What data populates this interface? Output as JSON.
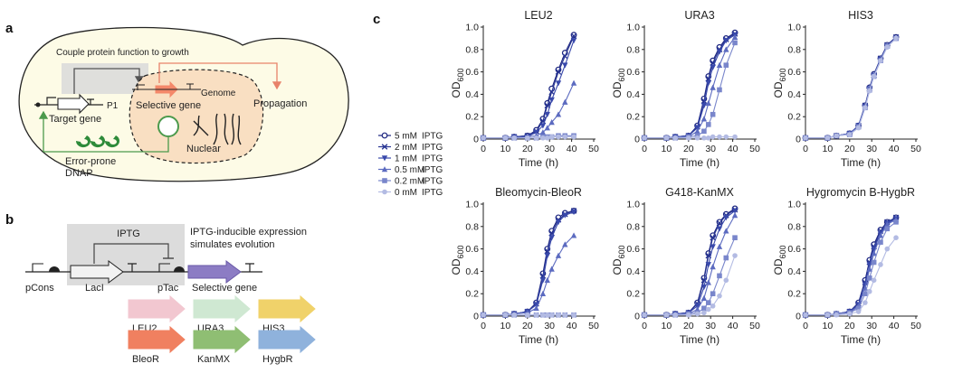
{
  "panel_a": {
    "label": "a",
    "couple_text": "Couple protein function to growth",
    "p1": "P1",
    "target_gene": "Target gene",
    "selective_gene": "Selective gene",
    "genome": "Genome",
    "propagation": "Propagation",
    "nuclear": "Nuclear",
    "dnap_line1": "Error-prone",
    "dnap_line2": "DNAP"
  },
  "panel_b": {
    "label": "b",
    "iptg": "IPTG",
    "desc_line1": "IPTG-inducible expression",
    "desc_line2": "simulates evolution",
    "pcons": "pCons",
    "laci": "LacI",
    "ptac": "pTac",
    "selective_gene": "Selective gene",
    "markers": [
      {
        "name": "LEU2",
        "fill": "#f2c7d0",
        "text": "#e3a0b0"
      },
      {
        "name": "URA3",
        "fill": "#cfe8d2",
        "text": "#a8d4ae"
      },
      {
        "name": "HIS3",
        "fill": "#f0d26a",
        "text": "#e0bc40"
      },
      {
        "name": "BleoR",
        "fill": "#f08060",
        "text": "#e07050"
      },
      {
        "name": "KanMX",
        "fill": "#8fbe73",
        "text": "#78ac58"
      },
      {
        "name": "HygbR",
        "fill": "#8fb2dc",
        "text": "#6e98cc"
      }
    ]
  },
  "panel_c": {
    "label": "c",
    "legend": [
      {
        "conc": "5 mM",
        "unit": "IPTG",
        "color": "#1a237e",
        "marker": "open-circle"
      },
      {
        "conc": "2 mM",
        "unit": "IPTG",
        "color": "#283593",
        "marker": "x"
      },
      {
        "conc": "1 mM",
        "unit": "IPTG",
        "color": "#3949ab",
        "marker": "down-triangle"
      },
      {
        "conc": "0.5 mM",
        "unit": "IPTG",
        "color": "#5c6bc0",
        "marker": "up-triangle"
      },
      {
        "conc": "0.2 mM",
        "unit": "IPTG",
        "color": "#7986cb",
        "marker": "square"
      },
      {
        "conc": "0 mM",
        "unit": "IPTG",
        "color": "#b3bbe3",
        "marker": "circle"
      }
    ]
  },
  "chart_data": [
    {
      "type": "line",
      "title": "LEU2",
      "xlabel": "Time (h)",
      "ylabel": "OD600",
      "xlim": [
        0,
        50
      ],
      "ylim": [
        0,
        1.0
      ],
      "xticks": [
        "0",
        "10",
        "20",
        "30",
        "40",
        "50"
      ],
      "yticks": [
        "0",
        "0.2",
        "0.4",
        "0.6",
        "0.8",
        "1.0"
      ],
      "x": [
        0,
        10,
        14,
        20,
        24,
        27,
        29,
        31,
        34,
        37,
        41
      ],
      "series": [
        {
          "name": "5 mM IPTG",
          "values": [
            0.01,
            0.01,
            0.02,
            0.03,
            0.08,
            0.18,
            0.32,
            0.45,
            0.62,
            0.77,
            0.93
          ]
        },
        {
          "name": "2 mM IPTG",
          "values": [
            0.01,
            0.01,
            0.02,
            0.03,
            0.07,
            0.16,
            0.3,
            0.42,
            0.6,
            0.74,
            0.92
          ]
        },
        {
          "name": "1 mM IPTG",
          "values": [
            0.01,
            0.01,
            0.02,
            0.02,
            0.06,
            0.12,
            0.22,
            0.35,
            0.5,
            0.66,
            0.88
          ]
        },
        {
          "name": "0.5 mM IPTG",
          "values": [
            0.01,
            0.01,
            0.01,
            0.02,
            0.03,
            0.06,
            0.1,
            0.15,
            0.22,
            0.33,
            0.5
          ]
        },
        {
          "name": "0.2 mM IPTG",
          "values": [
            0.01,
            0.01,
            0.01,
            0.01,
            0.01,
            0.02,
            0.02,
            0.02,
            0.03,
            0.03,
            0.03
          ]
        },
        {
          "name": "0 mM IPTG",
          "values": [
            0.01,
            0.01,
            0.01,
            0.01,
            0.01,
            0.01,
            0.01,
            0.02,
            0.02,
            0.02,
            0.02
          ]
        }
      ]
    },
    {
      "type": "line",
      "title": "URA3",
      "xlabel": "Time (h)",
      "ylabel": "OD600",
      "xlim": [
        0,
        50
      ],
      "ylim": [
        0,
        1.0
      ],
      "xticks": [
        "0",
        "10",
        "20",
        "30",
        "40",
        "50"
      ],
      "yticks": [
        "0",
        "0.2",
        "0.4",
        "0.6",
        "0.8",
        "1.0"
      ],
      "x": [
        0,
        10,
        14,
        20,
        24,
        27,
        29,
        31,
        34,
        37,
        41
      ],
      "series": [
        {
          "name": "5 mM IPTG",
          "values": [
            0.01,
            0.01,
            0.02,
            0.03,
            0.12,
            0.36,
            0.56,
            0.7,
            0.82,
            0.9,
            0.95
          ]
        },
        {
          "name": "2 mM IPTG",
          "values": [
            0.01,
            0.01,
            0.02,
            0.03,
            0.11,
            0.34,
            0.54,
            0.68,
            0.8,
            0.89,
            0.94
          ]
        },
        {
          "name": "1 mM IPTG",
          "values": [
            0.01,
            0.01,
            0.02,
            0.03,
            0.1,
            0.3,
            0.5,
            0.64,
            0.78,
            0.88,
            0.93
          ]
        },
        {
          "name": "0.5 mM IPTG",
          "values": [
            0.01,
            0.01,
            0.02,
            0.02,
            0.07,
            0.18,
            0.32,
            0.46,
            0.66,
            0.8,
            0.91
          ]
        },
        {
          "name": "0.2 mM IPTG",
          "values": [
            0.01,
            0.01,
            0.01,
            0.02,
            0.03,
            0.07,
            0.13,
            0.22,
            0.44,
            0.66,
            0.86
          ]
        },
        {
          "name": "0 mM IPTG",
          "values": [
            0.01,
            0.01,
            0.01,
            0.01,
            0.01,
            0.01,
            0.01,
            0.02,
            0.02,
            0.02,
            0.02
          ]
        }
      ]
    },
    {
      "type": "line",
      "title": "HIS3",
      "xlabel": "Time (h)",
      "ylabel": "OD600",
      "xlim": [
        0,
        50
      ],
      "ylim": [
        0,
        1.0
      ],
      "xticks": [
        "0",
        "10",
        "20",
        "30",
        "40",
        "50"
      ],
      "yticks": [
        "0",
        "0.2",
        "0.4",
        "0.6",
        "0.8",
        "1.0"
      ],
      "x": [
        0,
        10,
        14,
        20,
        24,
        27,
        29,
        31,
        34,
        37,
        41
      ],
      "series": [
        {
          "name": "5 mM IPTG",
          "values": [
            0.01,
            0.01,
            0.03,
            0.05,
            0.12,
            0.3,
            0.46,
            0.58,
            0.72,
            0.84,
            0.91
          ]
        },
        {
          "name": "2 mM IPTG",
          "values": [
            0.01,
            0.01,
            0.03,
            0.05,
            0.12,
            0.3,
            0.45,
            0.57,
            0.72,
            0.84,
            0.91
          ]
        },
        {
          "name": "1 mM IPTG",
          "values": [
            0.01,
            0.01,
            0.03,
            0.05,
            0.12,
            0.29,
            0.45,
            0.57,
            0.71,
            0.83,
            0.9
          ]
        },
        {
          "name": "0.5 mM IPTG",
          "values": [
            0.01,
            0.01,
            0.03,
            0.05,
            0.11,
            0.29,
            0.44,
            0.57,
            0.71,
            0.83,
            0.9
          ]
        },
        {
          "name": "0.2 mM IPTG",
          "values": [
            0.01,
            0.01,
            0.03,
            0.04,
            0.11,
            0.28,
            0.44,
            0.56,
            0.7,
            0.83,
            0.9
          ]
        },
        {
          "name": "0 mM IPTG",
          "values": [
            0.01,
            0.01,
            0.03,
            0.04,
            0.1,
            0.28,
            0.43,
            0.56,
            0.7,
            0.82,
            0.9
          ]
        }
      ]
    },
    {
      "type": "line",
      "title": "Bleomycin-BleoR",
      "xlabel": "Time (h)",
      "ylabel": "OD600",
      "xlim": [
        0,
        50
      ],
      "ylim": [
        0,
        1.0
      ],
      "xticks": [
        "0",
        "10",
        "20",
        "30",
        "40",
        "50"
      ],
      "yticks": [
        "0",
        "0.2",
        "0.4",
        "0.6",
        "0.8",
        "1.0"
      ],
      "x": [
        0,
        10,
        14,
        20,
        24,
        27,
        29,
        31,
        34,
        37,
        41
      ],
      "series": [
        {
          "name": "5 mM IPTG",
          "values": [
            0.01,
            0.01,
            0.02,
            0.04,
            0.12,
            0.38,
            0.6,
            0.76,
            0.88,
            0.92,
            0.94
          ]
        },
        {
          "name": "2 mM IPTG",
          "values": [
            0.01,
            0.01,
            0.02,
            0.04,
            0.11,
            0.36,
            0.58,
            0.74,
            0.86,
            0.91,
            0.94
          ]
        },
        {
          "name": "1 mM IPTG",
          "values": [
            0.01,
            0.01,
            0.02,
            0.04,
            0.1,
            0.32,
            0.54,
            0.7,
            0.84,
            0.9,
            0.93
          ]
        },
        {
          "name": "0.5 mM IPTG",
          "values": [
            0.01,
            0.01,
            0.02,
            0.03,
            0.07,
            0.2,
            0.32,
            0.42,
            0.54,
            0.64,
            0.72
          ]
        },
        {
          "name": "0.2 mM IPTG",
          "values": [
            0.01,
            0.01,
            0.01,
            0.01,
            0.01,
            0.01,
            0.01,
            0.01,
            0.01,
            0.01,
            0.01
          ]
        },
        {
          "name": "0 mM IPTG",
          "values": [
            0.01,
            0.01,
            0.01,
            0.01,
            0.01,
            0.01,
            0.01,
            0.01,
            0.01,
            0.01,
            0.01
          ]
        }
      ]
    },
    {
      "type": "line",
      "title": "G418-KanMX",
      "xlabel": "Time (h)",
      "ylabel": "OD600",
      "xlim": [
        0,
        50
      ],
      "ylim": [
        0,
        1.0
      ],
      "xticks": [
        "0",
        "10",
        "20",
        "30",
        "40",
        "50"
      ],
      "yticks": [
        "0",
        "0.2",
        "0.4",
        "0.6",
        "0.8",
        "1.0"
      ],
      "x": [
        0,
        10,
        14,
        20,
        24,
        27,
        29,
        31,
        34,
        37,
        41
      ],
      "series": [
        {
          "name": "5 mM IPTG",
          "values": [
            0.01,
            0.01,
            0.02,
            0.03,
            0.12,
            0.34,
            0.56,
            0.72,
            0.84,
            0.91,
            0.96
          ]
        },
        {
          "name": "2 mM IPTG",
          "values": [
            0.01,
            0.01,
            0.02,
            0.03,
            0.11,
            0.32,
            0.54,
            0.7,
            0.83,
            0.9,
            0.95
          ]
        },
        {
          "name": "1 mM IPTG",
          "values": [
            0.01,
            0.01,
            0.02,
            0.03,
            0.09,
            0.26,
            0.46,
            0.62,
            0.78,
            0.88,
            0.94
          ]
        },
        {
          "name": "0.5 mM IPTG",
          "values": [
            0.01,
            0.01,
            0.02,
            0.02,
            0.06,
            0.16,
            0.3,
            0.44,
            0.62,
            0.76,
            0.9
          ]
        },
        {
          "name": "0.2 mM IPTG",
          "values": [
            0.01,
            0.01,
            0.01,
            0.02,
            0.03,
            0.07,
            0.12,
            0.2,
            0.36,
            0.52,
            0.7
          ]
        },
        {
          "name": "0 mM IPTG",
          "values": [
            0.01,
            0.01,
            0.01,
            0.01,
            0.02,
            0.03,
            0.06,
            0.09,
            0.18,
            0.32,
            0.54
          ]
        }
      ]
    },
    {
      "type": "line",
      "title": "Hygromycin B-HygbR",
      "xlabel": "Time (h)",
      "ylabel": "OD600",
      "xlim": [
        0,
        50
      ],
      "ylim": [
        0,
        1.0
      ],
      "xticks": [
        "0",
        "10",
        "20",
        "30",
        "40",
        "50"
      ],
      "yticks": [
        "0",
        "0.2",
        "0.4",
        "0.6",
        "0.8",
        "1.0"
      ],
      "x": [
        0,
        10,
        14,
        20,
        24,
        27,
        29,
        31,
        34,
        37,
        41
      ],
      "series": [
        {
          "name": "5 mM IPTG",
          "values": [
            0.01,
            0.01,
            0.02,
            0.04,
            0.12,
            0.32,
            0.5,
            0.64,
            0.77,
            0.84,
            0.88
          ]
        },
        {
          "name": "2 mM IPTG",
          "values": [
            0.01,
            0.01,
            0.02,
            0.04,
            0.11,
            0.3,
            0.48,
            0.62,
            0.76,
            0.84,
            0.88
          ]
        },
        {
          "name": "1 mM IPTG",
          "values": [
            0.01,
            0.01,
            0.02,
            0.04,
            0.1,
            0.28,
            0.46,
            0.6,
            0.74,
            0.83,
            0.87
          ]
        },
        {
          "name": "0.5 mM IPTG",
          "values": [
            0.01,
            0.01,
            0.02,
            0.03,
            0.09,
            0.25,
            0.42,
            0.56,
            0.72,
            0.82,
            0.86
          ]
        },
        {
          "name": "0.2 mM IPTG",
          "values": [
            0.01,
            0.01,
            0.02,
            0.03,
            0.07,
            0.2,
            0.34,
            0.48,
            0.66,
            0.78,
            0.84
          ]
        },
        {
          "name": "0 mM IPTG",
          "values": [
            0.01,
            0.01,
            0.01,
            0.02,
            0.04,
            0.12,
            0.22,
            0.32,
            0.46,
            0.6,
            0.7
          ]
        }
      ]
    }
  ]
}
